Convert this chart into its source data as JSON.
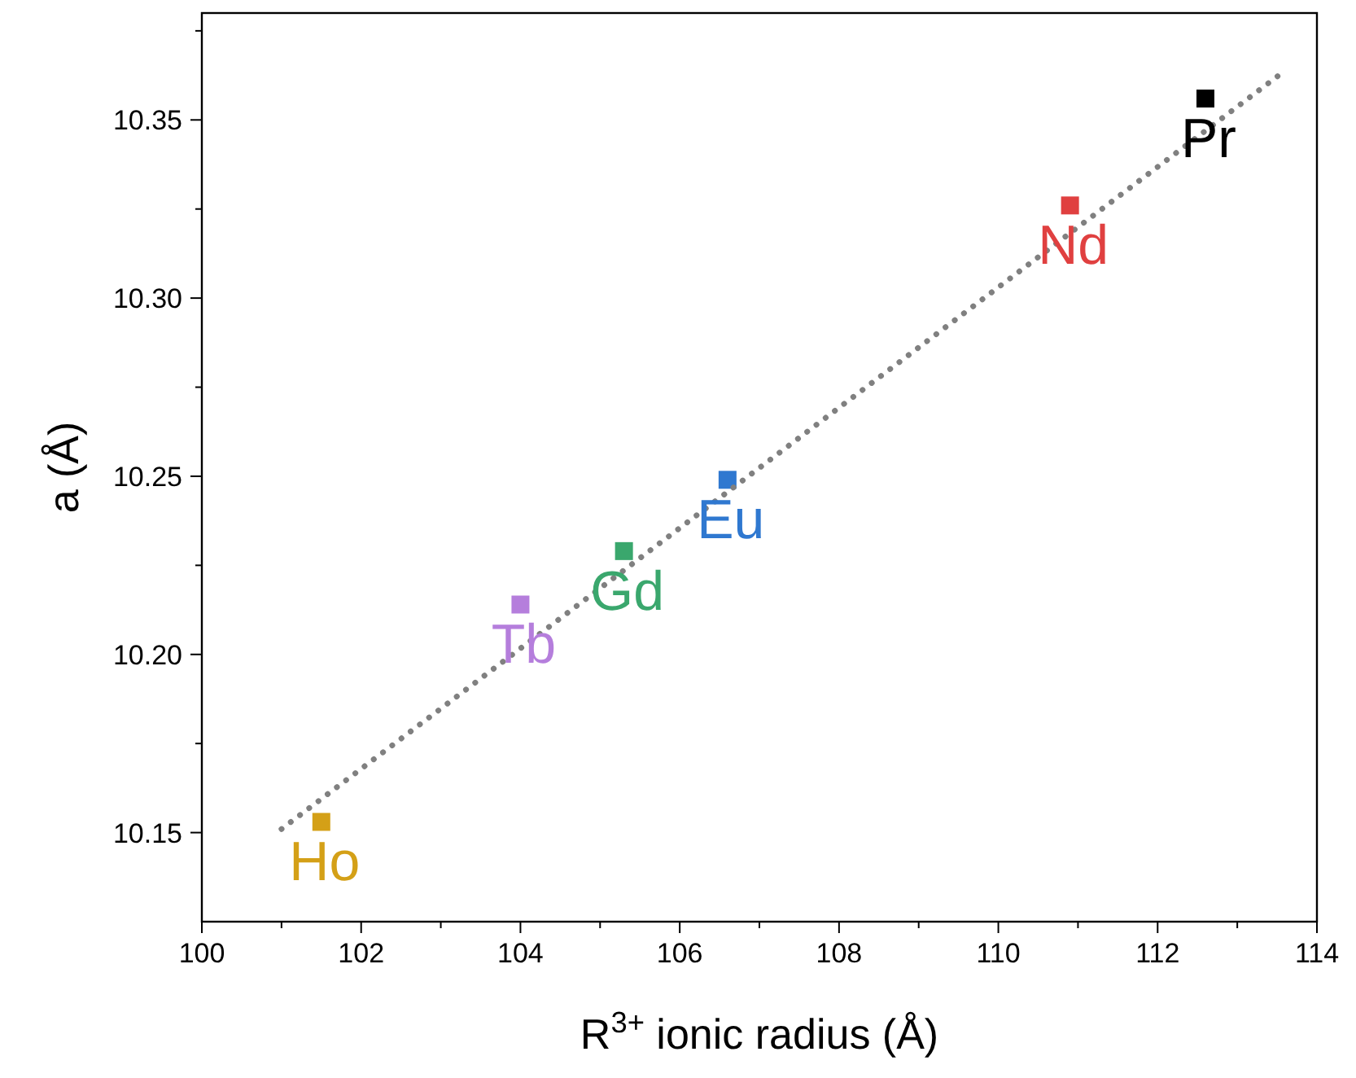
{
  "chart_data": {
    "type": "scatter",
    "xlabel": "R$^{3+}$ ionic radius (Å)",
    "ylabel": "a (Å)",
    "xlim": [
      100,
      114
    ],
    "ylim": [
      10.125,
      10.38
    ],
    "xticks": [
      100,
      {
        "value": 101,
        "label": null
      },
      102,
      {
        "value": 103,
        "label": null
      },
      104,
      {
        "value": 105,
        "label": null
      },
      106,
      {
        "value": 107,
        "label": null
      },
      108,
      {
        "value": 109,
        "label": null
      },
      110,
      {
        "value": 111,
        "label": null
      },
      112,
      {
        "value": 113,
        "label": null
      },
      114
    ],
    "yticks": [
      {
        "value": 10.15,
        "label": "10.15"
      },
      {
        "value": 10.175,
        "label": null
      },
      {
        "value": 10.2,
        "label": "10.20"
      },
      {
        "value": 10.225,
        "label": null
      },
      {
        "value": 10.25,
        "label": "10.25"
      },
      {
        "value": 10.275,
        "label": null
      },
      {
        "value": 10.3,
        "label": "10.30"
      },
      {
        "value": 10.325,
        "label": null
      },
      {
        "value": 10.35,
        "label": "10.35"
      },
      {
        "value": 10.375,
        "label": null
      }
    ],
    "grid": false,
    "series": [
      {
        "marker": "square",
        "x": [
          101.5,
          104.0,
          105.3,
          106.6,
          110.9,
          112.6
        ],
        "values": [
          10.153,
          10.214,
          10.229,
          10.249,
          10.326,
          10.356
        ],
        "colors": [
          "#d4a017",
          "#b57edc",
          "#3aa76d",
          "#2f78d0",
          "#e04040",
          "#000000"
        ]
      },
      {
        "type": "line",
        "x": [
          101.0,
          113.55
        ],
        "values": [
          10.151,
          10.363
        ],
        "color": "#808080",
        "line_style": "dotted",
        "marker": "none"
      }
    ],
    "annotations": [
      {
        "text": "Ho",
        "x": 101.5,
        "y": 10.153
      },
      {
        "text": "Tb",
        "x": 104.0,
        "y": 10.214
      },
      {
        "text": "Gd",
        "x": 105.3,
        "y": 10.229
      },
      {
        "text": "Eu",
        "x": 106.6,
        "y": 10.249
      },
      {
        "text": "Nd",
        "x": 110.9,
        "y": 10.326
      },
      {
        "text": "Pr",
        "x": 112.6,
        "y": 10.356
      }
    ]
  }
}
